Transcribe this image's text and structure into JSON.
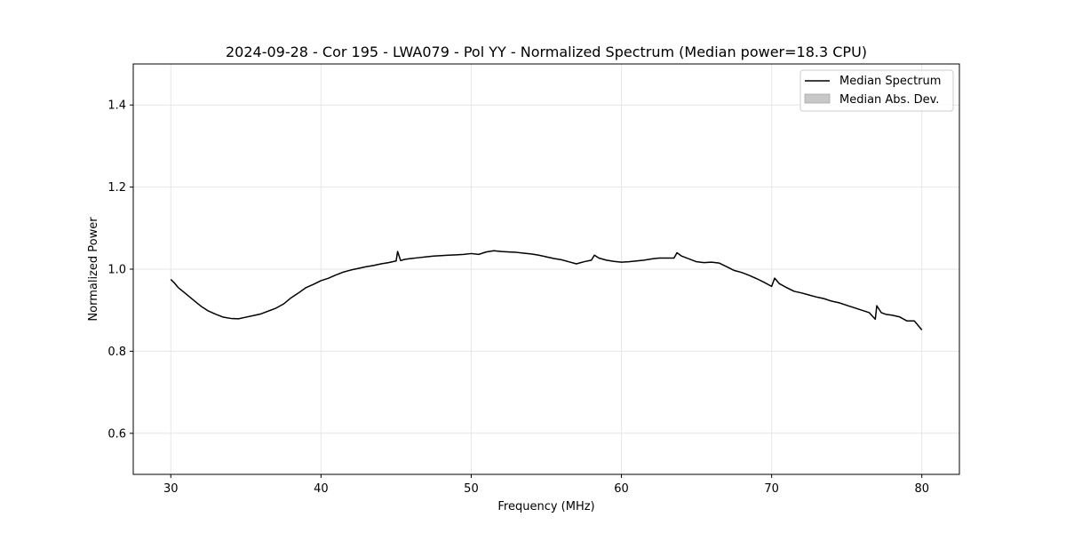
{
  "chart_data": {
    "type": "line",
    "title": "2024-09-28 - Cor 195 - LWA079 - Pol YY - Normalized Spectrum (Median power=18.3 CPU)",
    "xlabel": "Frequency (MHz)",
    "ylabel": "Normalized Power",
    "xlim": [
      27.5,
      82.5
    ],
    "ylim": [
      0.5,
      1.5
    ],
    "xticks": [
      30,
      40,
      50,
      60,
      70,
      80
    ],
    "yticks": [
      0.6,
      0.8,
      1.0,
      1.2,
      1.4
    ],
    "xtick_labels": [
      "30",
      "40",
      "50",
      "60",
      "70",
      "80"
    ],
    "ytick_labels": [
      "0.6",
      "0.8",
      "1.0",
      "1.2",
      "1.4"
    ],
    "grid": true,
    "legend_position": "top-right",
    "legend": [
      "Median Spectrum",
      "Median Abs. Dev."
    ],
    "series": [
      {
        "name": "Median Spectrum",
        "color": "#000000",
        "x": [
          30,
          30.2,
          30.5,
          31,
          31.5,
          32,
          32.5,
          33,
          33.5,
          34,
          34.5,
          35,
          35.5,
          36,
          36.5,
          37,
          37.5,
          38,
          38.5,
          39,
          39.5,
          40,
          40.5,
          41,
          41.5,
          42,
          42.5,
          43,
          43.5,
          44,
          44.5,
          45,
          45.1,
          45.3,
          45.6,
          46,
          46.5,
          47,
          47.5,
          48,
          48.5,
          49,
          49.5,
          50,
          50.5,
          51,
          51.5,
          52,
          52.5,
          53,
          53.5,
          54,
          54.5,
          55,
          55.5,
          56,
          56.5,
          57,
          57.5,
          58,
          58.2,
          58.5,
          59,
          59.5,
          60,
          60.5,
          61,
          61.5,
          62,
          62.5,
          63,
          63.5,
          63.7,
          64,
          64.5,
          65,
          65.5,
          66,
          66.5,
          67,
          67.5,
          68,
          68.5,
          69,
          69.5,
          70,
          70.2,
          70.5,
          71,
          71.5,
          72,
          72.5,
          73,
          73.5,
          74,
          74.5,
          75,
          75.5,
          76,
          76.5,
          76.9,
          77,
          77.3,
          77.6,
          78,
          78.5,
          79,
          79.5,
          80
        ],
        "values": [
          0.975,
          0.968,
          0.955,
          0.94,
          0.925,
          0.91,
          0.898,
          0.89,
          0.883,
          0.88,
          0.879,
          0.883,
          0.887,
          0.891,
          0.898,
          0.905,
          0.915,
          0.93,
          0.942,
          0.955,
          0.963,
          0.972,
          0.978,
          0.986,
          0.993,
          0.998,
          1.002,
          1.006,
          1.009,
          1.013,
          1.016,
          1.02,
          1.043,
          1.021,
          1.024,
          1.026,
          1.028,
          1.03,
          1.032,
          1.033,
          1.034,
          1.035,
          1.036,
          1.038,
          1.036,
          1.042,
          1.045,
          1.043,
          1.042,
          1.041,
          1.039,
          1.037,
          1.034,
          1.03,
          1.026,
          1.023,
          1.018,
          1.013,
          1.018,
          1.022,
          1.034,
          1.027,
          1.022,
          1.019,
          1.017,
          1.018,
          1.02,
          1.022,
          1.025,
          1.027,
          1.027,
          1.027,
          1.04,
          1.032,
          1.025,
          1.018,
          1.016,
          1.017,
          1.015,
          1.006,
          0.997,
          0.992,
          0.985,
          0.977,
          0.968,
          0.958,
          0.978,
          0.965,
          0.955,
          0.946,
          0.942,
          0.937,
          0.932,
          0.928,
          0.922,
          0.918,
          0.912,
          0.906,
          0.9,
          0.894,
          0.878,
          0.911,
          0.894,
          0.89,
          0.888,
          0.884,
          0.874,
          0.874,
          0.852
        ]
      },
      {
        "name": "Median Abs. Dev.",
        "color": "#c8c8c8",
        "type": "band"
      }
    ]
  }
}
